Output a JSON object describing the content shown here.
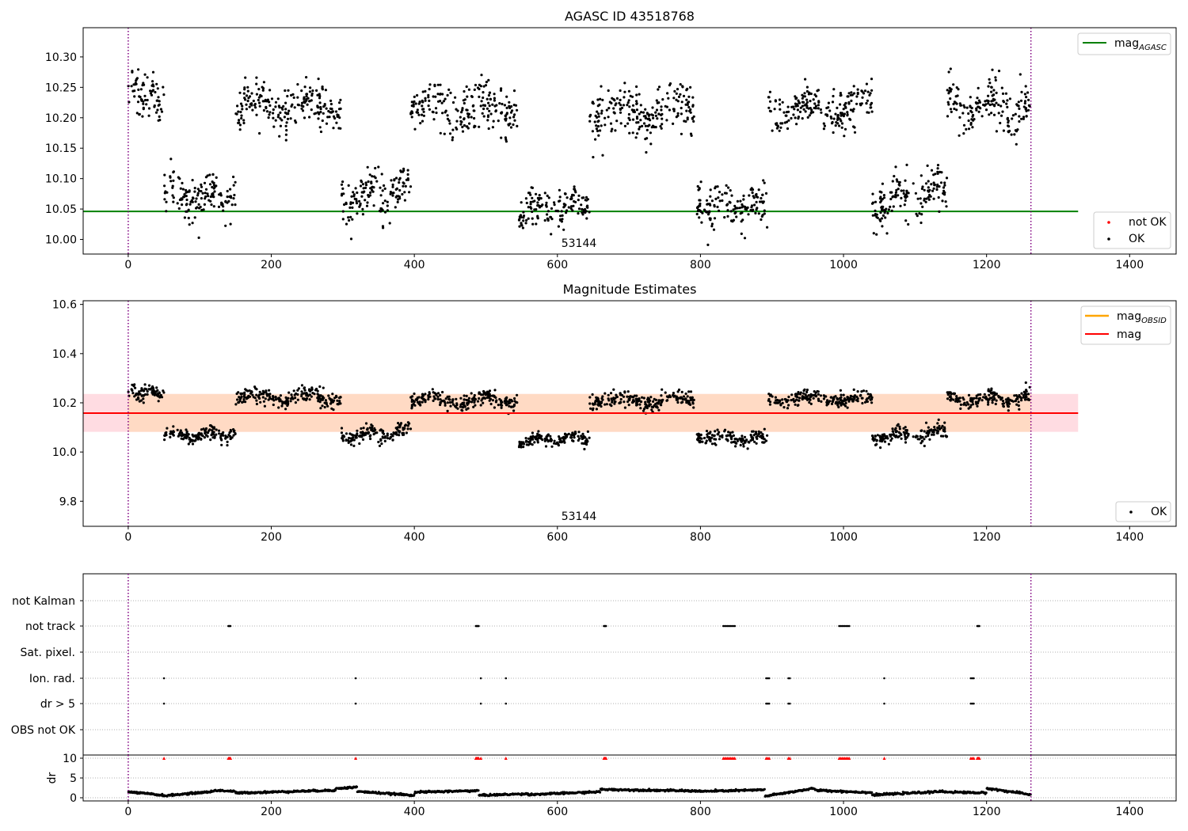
{
  "figure": {
    "panel1_title": "AGASC ID 43518768",
    "panel2_title": "Magnitude Estimates",
    "obsid_annotation": "53144"
  },
  "colors": {
    "ok_points": "#000000",
    "not_ok_points": "#ff0000",
    "mag_agasc": "#008000",
    "mag_obsid": "#ffa500",
    "mag": "#ff0000",
    "band_fill": "#ffc0cb",
    "band_inner_fill": "#ffdab9",
    "obs_boundary": "#800080",
    "grid": "#b0b0b0"
  },
  "chart_data": [
    {
      "type": "scatter",
      "title": "AGASC ID 43518768",
      "xlabel": "",
      "ylabel": "",
      "xlim": [
        -63,
        1465
      ],
      "ylim": [
        9.976,
        10.348
      ],
      "xticks": [
        "0",
        "200",
        "400",
        "600",
        "800",
        "1000",
        "1200",
        "1400"
      ],
      "yticks": [
        "10.00",
        "10.05",
        "10.10",
        "10.15",
        "10.20",
        "10.25",
        "10.30"
      ],
      "grid": false,
      "obs_boundaries_x": [
        0,
        1262
      ],
      "annotation": {
        "text": "53144",
        "x": 630
      },
      "lines": [
        {
          "name": "mag_AGASC",
          "legend_base": "mag",
          "legend_sub": "AGASC",
          "y": 10.046,
          "x_range": [
            -63,
            1328
          ]
        }
      ],
      "series_legend": [
        {
          "name": "not OK"
        },
        {
          "name": "OK"
        }
      ],
      "legends": {
        "lines": "top-right",
        "points": "bottom-right"
      },
      "segments": [
        {
          "x0": 0,
          "x1": 50,
          "mean": 10.242,
          "spread": 0.025,
          "jitter": 0.018,
          "trend": 0
        },
        {
          "x0": 50,
          "x1": 150,
          "mean": 10.072,
          "spread": 0.02,
          "jitter": 0.016,
          "trend": 0
        },
        {
          "x0": 150,
          "x1": 298,
          "mean": 10.218,
          "spread": 0.025,
          "jitter": 0.02,
          "trend": 0
        },
        {
          "x0": 298,
          "x1": 395,
          "mean": 10.075,
          "spread": 0.025,
          "jitter": 0.018,
          "trend": 0.02
        },
        {
          "x0": 395,
          "x1": 545,
          "mean": 10.212,
          "spread": 0.025,
          "jitter": 0.02,
          "trend": 0
        },
        {
          "x0": 545,
          "x1": 645,
          "mean": 10.052,
          "spread": 0.018,
          "jitter": 0.015,
          "trend": 0.015
        },
        {
          "x0": 645,
          "x1": 795,
          "mean": 10.21,
          "spread": 0.025,
          "jitter": 0.02,
          "trend": 0
        },
        {
          "x0": 795,
          "x1": 895,
          "mean": 10.058,
          "spread": 0.02,
          "jitter": 0.016,
          "trend": -0.01
        },
        {
          "x0": 895,
          "x1": 1040,
          "mean": 10.215,
          "spread": 0.02,
          "jitter": 0.016,
          "trend": 0
        },
        {
          "x0": 1040,
          "x1": 1145,
          "mean": 10.07,
          "spread": 0.022,
          "jitter": 0.018,
          "trend": 0.02
        },
        {
          "x0": 1145,
          "x1": 1262,
          "mean": 10.215,
          "spread": 0.025,
          "jitter": 0.02,
          "trend": 0
        }
      ]
    },
    {
      "type": "scatter",
      "title": "Magnitude Estimates",
      "xlabel": "",
      "ylabel": "",
      "xlim": [
        -63,
        1465
      ],
      "ylim": [
        9.698,
        10.615
      ],
      "xticks": [
        "0",
        "200",
        "400",
        "600",
        "800",
        "1000",
        "1200",
        "1400"
      ],
      "yticks": [
        "9.8",
        "10.0",
        "10.2",
        "10.4",
        "10.6"
      ],
      "grid": false,
      "obs_boundaries_x": [
        0,
        1262
      ],
      "annotation": {
        "text": "53144",
        "x": 630
      },
      "lines": [
        {
          "name": "mag_OBSID",
          "legend_base": "mag",
          "legend_sub": "OBSID",
          "y": 10.158,
          "x_range": [
            0,
            1262
          ]
        },
        {
          "name": "mag",
          "legend_base": "mag",
          "legend_sub": "",
          "y": 10.158,
          "x_range": [
            -63,
            1328
          ]
        }
      ],
      "band": {
        "y_low": 10.082,
        "y_high": 10.236,
        "x_range": [
          -63,
          1328
        ],
        "inner_x_range": [
          0,
          1262
        ]
      },
      "series_legend": [
        {
          "name": "OK"
        }
      ],
      "legends": {
        "lines": "top-right",
        "points": "bottom-right"
      }
    },
    {
      "type": "scatter",
      "title": "",
      "xlabel": "",
      "ylabel": "",
      "xlim": [
        -63,
        1465
      ],
      "xticks": [
        "0",
        "200",
        "400",
        "600",
        "800",
        "1000",
        "1200",
        "1400"
      ],
      "flag_rows": [
        "not Kalman",
        "not track",
        "Sat. pixel.",
        "Ion. rad.",
        "dr > 5",
        "OBS not OK"
      ],
      "flag_events": {
        "not Kalman": [],
        "not track": [
          140,
          141,
          142,
          143,
          486,
          487,
          488,
          489,
          490,
          665,
          666,
          667,
          668,
          832,
          834,
          836,
          838,
          840,
          842,
          844,
          846,
          848,
          994,
          996,
          998,
          1000,
          1002,
          1004,
          1006,
          1008,
          1187,
          1188,
          1189,
          1190
        ],
        "Sat. pixel.": [],
        "Ion. rad.": [
          50,
          318,
          493,
          528,
          892,
          894,
          896,
          923,
          925,
          1057,
          1178,
          1180,
          1182
        ],
        "dr > 5": [
          50,
          318,
          493,
          528,
          892,
          894,
          896,
          923,
          925,
          1057,
          1178,
          1180,
          1182
        ],
        "OBS not OK": []
      },
      "dr_panel": {
        "ylabel": "dr",
        "yticks": [
          "0",
          "5",
          "10"
        ],
        "ylim": [
          -0.8,
          10.8
        ],
        "cap": 10,
        "segments": [
          {
            "x0": 0,
            "x1": 50,
            "start": 1.5,
            "end": 0.6
          },
          {
            "x0": 50,
            "x1": 120,
            "start": 0.5,
            "end": 1.6
          },
          {
            "x0": 120,
            "x1": 150,
            "start": 1.9,
            "end": 1.6
          },
          {
            "x0": 150,
            "x1": 290,
            "start": 1.2,
            "end": 1.9
          },
          {
            "x0": 290,
            "x1": 320,
            "start": 2.3,
            "end": 2.7
          },
          {
            "x0": 320,
            "x1": 400,
            "start": 1.6,
            "end": 0.6
          },
          {
            "x0": 400,
            "x1": 490,
            "start": 1.4,
            "end": 1.8
          },
          {
            "x0": 490,
            "x1": 560,
            "start": 0.6,
            "end": 1.0
          },
          {
            "x0": 560,
            "x1": 660,
            "start": 0.8,
            "end": 1.5
          },
          {
            "x0": 660,
            "x1": 800,
            "start": 2.1,
            "end": 1.7
          },
          {
            "x0": 800,
            "x1": 890,
            "start": 1.6,
            "end": 2.0
          },
          {
            "x0": 890,
            "x1": 960,
            "start": 0.4,
            "end": 2.4
          },
          {
            "x0": 960,
            "x1": 1040,
            "start": 1.9,
            "end": 1.3
          },
          {
            "x0": 1040,
            "x1": 1140,
            "start": 0.7,
            "end": 1.6
          },
          {
            "x0": 1140,
            "x1": 1200,
            "start": 1.5,
            "end": 1.2
          },
          {
            "x0": 1200,
            "x1": 1262,
            "start": 2.4,
            "end": 0.8
          }
        ]
      }
    }
  ]
}
